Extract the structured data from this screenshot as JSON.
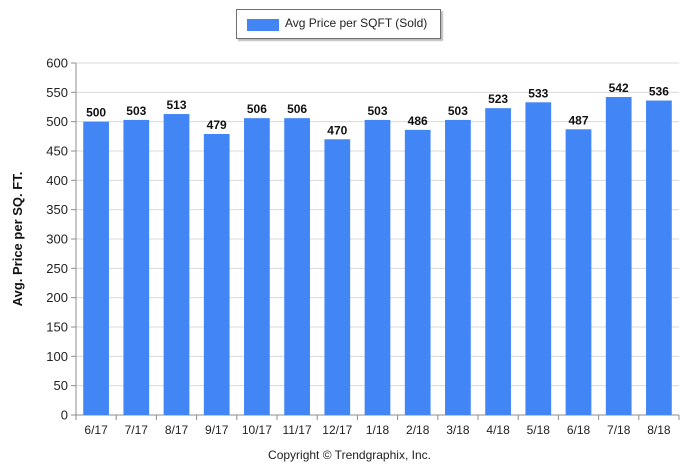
{
  "chart_data": {
    "type": "bar",
    "categories": [
      "6/17",
      "7/17",
      "8/17",
      "9/17",
      "10/17",
      "11/17",
      "12/17",
      "1/18",
      "2/18",
      "3/18",
      "4/18",
      "5/18",
      "6/18",
      "7/18",
      "8/18"
    ],
    "series": [
      {
        "name": "Avg Price per SQFT (Sold)",
        "values": [
          500,
          503,
          513,
          479,
          506,
          506,
          470,
          503,
          486,
          503,
          523,
          533,
          487,
          542,
          536
        ]
      }
    ],
    "ylabel": "Avg. Price per SQ. FT.",
    "xlabel": "",
    "ylim": [
      0,
      600
    ],
    "yticks": [
      0,
      50,
      100,
      150,
      200,
      250,
      300,
      350,
      400,
      450,
      500,
      550,
      600
    ],
    "grid": true,
    "legend": "top-center",
    "bar_color": "#4285f4",
    "data_labels": true
  },
  "footer": {
    "copyright": "Copyright © Trendgraphix, Inc."
  }
}
